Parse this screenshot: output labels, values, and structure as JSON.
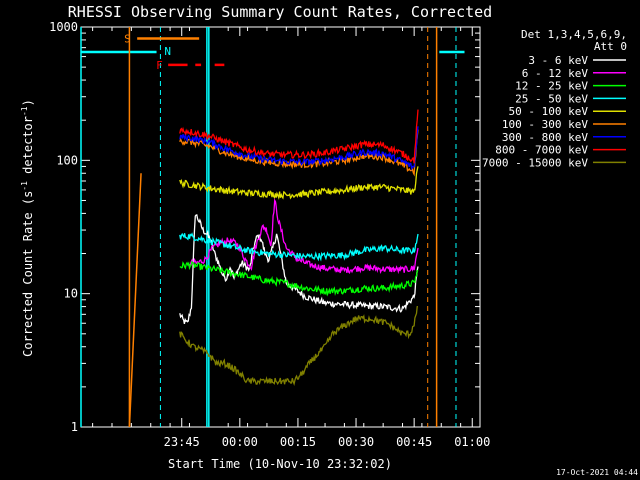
{
  "chart_data": {
    "type": "line",
    "title": "RHESSI Observing Summary Count Rates, Corrected",
    "ylabel_main": "Corrected Count Rate (s",
    "ylabel_exp1": "-1",
    "ylabel_mid": " detector",
    "ylabel_exp2": "-1",
    "ylabel_end": ")",
    "xlabel": "Start Time (10-Nov-10 23:32:02)",
    "yscale": "log",
    "ylim": [
      1,
      1000
    ],
    "xlim_minutes": [
      -13,
      90
    ],
    "x_ticks": [
      {
        "label": "23:45",
        "minute": 13
      },
      {
        "label": "00:00",
        "minute": 28
      },
      {
        "label": "00:15",
        "minute": 43
      },
      {
        "label": "00:30",
        "minute": 58
      },
      {
        "label": "00:45",
        "minute": 73
      },
      {
        "label": "01:00",
        "minute": 88
      }
    ],
    "y_ticks": [
      {
        "label": "1",
        "value": 1
      },
      {
        "label": "10",
        "value": 10
      },
      {
        "label": "100",
        "value": 100
      },
      {
        "label": "1000",
        "value": 1000
      }
    ],
    "legend_header1": "Det 1,3,4,5,6,9,",
    "legend_header2": "Att 0",
    "legend_placement": "right",
    "series": [
      {
        "name": "3 - 6 keV",
        "color": "#ffffff",
        "x": [
          12.5,
          13.5,
          14.5,
          15.5,
          16.5,
          17.5,
          18.5,
          19.5,
          20.5,
          21.5,
          22.5,
          23.5,
          24.5,
          25.5,
          26.5,
          27.5,
          28.5,
          29.5,
          30.5,
          31.5,
          32.5,
          33.5,
          34.5,
          35.5,
          36.5,
          37.5,
          38.5,
          40,
          45,
          50,
          55,
          60,
          65,
          70,
          73,
          74
        ],
        "y": [
          7,
          6.2,
          6,
          8,
          40,
          35,
          30,
          28,
          25,
          20,
          17,
          14,
          13,
          16,
          13,
          15,
          17,
          16,
          15,
          22,
          27,
          26,
          20,
          18,
          22,
          28,
          20,
          12,
          9.5,
          8.5,
          8.3,
          8.1,
          8,
          7.7,
          9.5,
          16
        ]
      },
      {
        "name": "6 - 12 keV",
        "color": "#ff00ff",
        "x": [
          15,
          17,
          19,
          21,
          23,
          25,
          27,
          28,
          29,
          30,
          31,
          32,
          33,
          34,
          35,
          36,
          37,
          38,
          40,
          43,
          46,
          50,
          55,
          60,
          65,
          70,
          73,
          74
        ],
        "y": [
          17,
          17,
          18,
          22,
          24,
          25,
          24,
          22,
          19,
          17,
          16,
          22,
          27,
          32,
          30,
          23,
          50,
          35,
          22,
          18,
          16.5,
          15.5,
          15,
          15.7,
          15.3,
          15.1,
          15.5,
          22
        ]
      },
      {
        "name": "12 - 25 keV",
        "color": "#00ff00",
        "x": [
          12.5,
          15,
          20,
          25,
          30,
          35,
          40,
          45,
          50,
          55,
          60,
          65,
          70,
          73,
          74
        ],
        "y": [
          16,
          16.5,
          15.5,
          14.5,
          13.5,
          12.5,
          12,
          11,
          10.5,
          10.5,
          11,
          11,
          11.5,
          12,
          15
        ]
      },
      {
        "name": "25 - 50 keV",
        "color": "#00ffff",
        "x": [
          12.5,
          15,
          20,
          25,
          30,
          35,
          40,
          45,
          50,
          55,
          60,
          65,
          70,
          73,
          74
        ],
        "y": [
          27,
          27,
          25,
          23,
          21,
          20,
          19.5,
          19,
          19.2,
          19.5,
          21,
          22,
          21,
          21,
          28
        ]
      },
      {
        "name": "50 - 100 keV",
        "color": "#e0e000",
        "x": [
          12.5,
          15,
          20,
          25,
          30,
          35,
          40,
          45,
          50,
          55,
          60,
          65,
          70,
          73,
          74
        ],
        "y": [
          68,
          66,
          62,
          59,
          57,
          56,
          55,
          56,
          58,
          60,
          63,
          63,
          60,
          58,
          90
        ]
      },
      {
        "name": "100 - 300 keV",
        "color": "#ff8000",
        "x": [
          12.5,
          15,
          20,
          25,
          30,
          35,
          40,
          45,
          50,
          55,
          60,
          65,
          70,
          73,
          74
        ],
        "y": [
          140,
          138,
          128,
          112,
          102,
          97,
          94,
          93,
          95,
          100,
          108,
          106,
          92,
          82,
          170
        ]
      },
      {
        "name": "300 - 800 keV",
        "color": "#0000ff",
        "x": [
          12.5,
          15,
          20,
          25,
          30,
          35,
          40,
          45,
          50,
          55,
          60,
          65,
          70,
          73,
          74
        ],
        "y": [
          150,
          148,
          138,
          120,
          108,
          101,
          98,
          97,
          100,
          106,
          115,
          113,
          98,
          88,
          180
        ]
      },
      {
        "name": "800 - 7000 keV",
        "color": "#ff0000",
        "x": [
          12.5,
          15,
          20,
          25,
          30,
          35,
          40,
          45,
          50,
          55,
          60,
          65,
          70,
          73,
          74
        ],
        "y": [
          168,
          165,
          152,
          135,
          120,
          112,
          110,
          110,
          114,
          122,
          132,
          130,
          112,
          100,
          240
        ]
      },
      {
        "name": "7000 - 15000 keV",
        "color": "#808000",
        "x": [
          12.5,
          14,
          16,
          18,
          20,
          22,
          24,
          26,
          28,
          30,
          32,
          34,
          36,
          38,
          40,
          42,
          44,
          46,
          48,
          50,
          52,
          54,
          56,
          58,
          60,
          62,
          64,
          66,
          68,
          70,
          72,
          73,
          74
        ],
        "y": [
          5,
          4.5,
          4,
          3.8,
          3.5,
          3,
          3,
          2.8,
          2.5,
          2.2,
          2.2,
          2.2,
          2.2,
          2.2,
          2.2,
          2.2,
          2.5,
          3,
          3.5,
          4,
          5,
          5.5,
          6,
          6.5,
          6.5,
          6.5,
          6.2,
          6,
          5.5,
          5,
          5,
          6,
          8
        ]
      }
    ],
    "flags": {
      "N_label": "N",
      "F_label": "F",
      "S_label": "S",
      "night_color": "#00ffff",
      "flare_color": "#ff0000",
      "saa_color": "#ff8000",
      "night_solid_x": [
        -13,
        19.5,
        20
      ],
      "night_bars": [
        [
          -13,
          6.5
        ],
        [
          79.5,
          86
        ]
      ],
      "night_dashed_x": [
        7.5,
        83.8
      ],
      "night_bar_level": 650,
      "flare_dashes": [
        [
          9.5,
          14.5
        ],
        [
          16.5,
          18
        ],
        [
          21.5,
          24
        ]
      ],
      "flare_level": 520,
      "saa_solid_x": [
        -0.5,
        78.8
      ],
      "saa_dashed_x": [
        76.5
      ],
      "saa_bar": [
        1.5,
        17.5
      ],
      "saa_level": 820,
      "orange_step_x": [
        -0.5,
        2.5
      ],
      "orange_step_y": [
        1,
        80
      ]
    }
  },
  "footer_date": "17-Oct-2021 04:44"
}
